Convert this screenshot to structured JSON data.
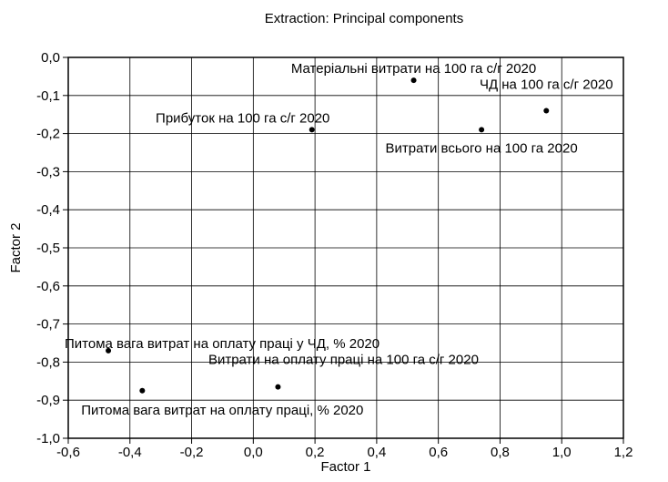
{
  "chart_data": {
    "type": "scatter",
    "title": "Extraction: Principal components",
    "xlabel": "Factor 1",
    "ylabel": "Factor 2",
    "xlim": [
      -0.6,
      1.2
    ],
    "ylim": [
      -1.0,
      0.0
    ],
    "x_ticks": [
      -0.6,
      -0.4,
      -0.2,
      0.0,
      0.2,
      0.4,
      0.6,
      0.8,
      1.0,
      1.2
    ],
    "y_ticks": [
      0.0,
      -0.1,
      -0.2,
      -0.3,
      -0.4,
      -0.5,
      -0.6,
      -0.7,
      -0.8,
      -0.9,
      -1.0
    ],
    "x_tick_labels": [
      "-0,6",
      "-0,4",
      "-0,2",
      "0,0",
      "0,2",
      "0,4",
      "0,6",
      "0,8",
      "1,0",
      "1,2"
    ],
    "y_tick_labels": [
      "0,0",
      "-0,1",
      "-0,2",
      "-0,3",
      "-0,4",
      "-0,5",
      "-0,6",
      "-0,7",
      "-0,8",
      "-0,9",
      "-1,0"
    ],
    "grid": true,
    "points": [
      {
        "label": "Матеріальні витрати на 100 га с/г 2020",
        "x": 0.52,
        "y": -0.06
      },
      {
        "label": "ЧД на 100 га с/г 2020",
        "x": 0.95,
        "y": -0.14
      },
      {
        "label": "Прибуток на 100 га с/г 2020",
        "x": 0.19,
        "y": -0.19
      },
      {
        "label": "Витрати всього на 100 га 2020",
        "x": 0.74,
        "y": -0.19
      },
      {
        "label": "Питома вага витрат на оплату праці у ЧД, % 2020",
        "x": -0.47,
        "y": -0.77
      },
      {
        "label": "Витрати на оплату праці на 100 га с/г 2020",
        "x": 0.08,
        "y": -0.865
      },
      {
        "label": "Питома вага витрат на оплату праці, % 2020",
        "x": -0.36,
        "y": -0.875
      }
    ]
  }
}
